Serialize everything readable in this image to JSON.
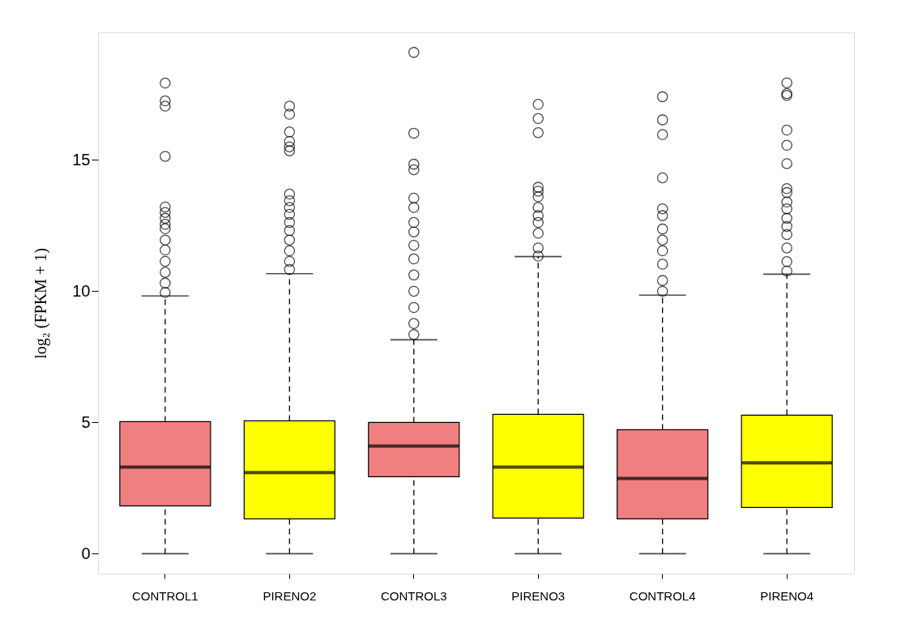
{
  "chart_data": {
    "type": "box",
    "ylabel": "log₂ (FPKM + 1)",
    "categories": [
      "CONTROL1",
      "PIRENO2",
      "CONTROL3",
      "PIRENO3",
      "CONTROL4",
      "PIRENO4"
    ],
    "colors": [
      "#f08080",
      "#ffff00",
      "#f08080",
      "#ffff00",
      "#f08080",
      "#ffff00"
    ],
    "boxes": [
      {
        "low": 0,
        "q1": 1.82,
        "median": 3.3,
        "q3": 5.03,
        "high": 9.82,
        "outliers": [
          17.93,
          17.25,
          17.05,
          15.14,
          13.21,
          13.0,
          12.78,
          12.55,
          12.38,
          11.95,
          11.57,
          11.14,
          10.72,
          10.31,
          9.95
        ]
      },
      {
        "low": 0,
        "q1": 1.33,
        "median": 3.09,
        "q3": 5.06,
        "high": 10.67,
        "outliers": [
          17.05,
          16.74,
          16.07,
          15.71,
          15.5,
          15.35,
          13.7,
          13.45,
          13.19,
          12.93,
          12.62,
          12.31,
          11.95,
          11.54,
          11.14,
          10.83
        ]
      },
      {
        "low": 0,
        "q1": 2.93,
        "median": 4.1,
        "q3": 5.0,
        "high": 8.15,
        "outliers": [
          19.1,
          16.02,
          14.84,
          14.63,
          13.55,
          13.19,
          12.62,
          12.26,
          11.75,
          11.23,
          10.62,
          10.0,
          9.38,
          8.77,
          8.35
        ]
      },
      {
        "low": 0,
        "q1": 1.36,
        "median": 3.3,
        "q3": 5.31,
        "high": 11.32,
        "outliers": [
          17.12,
          16.58,
          16.04,
          13.96,
          13.81,
          13.6,
          13.19,
          12.88,
          12.62,
          12.21,
          11.65,
          11.34
        ]
      },
      {
        "low": 0,
        "q1": 1.33,
        "median": 2.87,
        "q3": 4.72,
        "high": 9.85,
        "outliers": [
          17.41,
          16.53,
          15.97,
          14.32,
          13.14,
          12.88,
          12.37,
          11.95,
          11.54,
          11.03,
          10.41,
          10.0
        ]
      },
      {
        "low": 0,
        "q1": 1.76,
        "median": 3.46,
        "q3": 5.28,
        "high": 10.65,
        "outliers": [
          17.94,
          17.53,
          17.46,
          16.14,
          15.56,
          14.86,
          13.91,
          13.76,
          13.4,
          13.14,
          12.78,
          12.47,
          12.16,
          11.65,
          11.13,
          10.77
        ]
      }
    ],
    "ylim": [
      -0.76,
      19.86
    ],
    "yticks": [
      0,
      5,
      10,
      15
    ]
  }
}
